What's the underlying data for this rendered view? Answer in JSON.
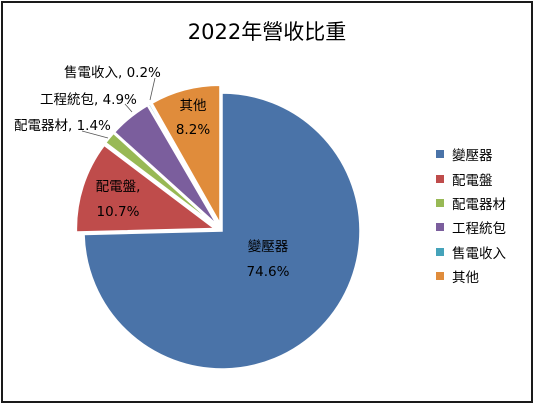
{
  "chart_data": {
    "type": "pie",
    "title": "2022年營收比重",
    "legend_position": "right",
    "slices": [
      {
        "name": "變壓器",
        "value": 74.6,
        "label": "74.6%",
        "color": "#4a73a8",
        "exploded": false
      },
      {
        "name": "配電盤",
        "value": 10.7,
        "label": "10.7%",
        "color": "#bf4c4b",
        "exploded": true
      },
      {
        "name": "配電器材",
        "value": 1.4,
        "label": "1.4%",
        "color": "#98b955",
        "exploded": true
      },
      {
        "name": "工程統包",
        "value": 4.9,
        "label": "4.9%",
        "color": "#7b5e9d",
        "exploded": true
      },
      {
        "name": "售電收入",
        "value": 0.2,
        "label": "0.2%",
        "color": "#45a3ba",
        "exploded": true
      },
      {
        "name": "其他",
        "value": 8.2,
        "label": "8.2%",
        "color": "#e08c3b",
        "exploded": true
      }
    ]
  }
}
